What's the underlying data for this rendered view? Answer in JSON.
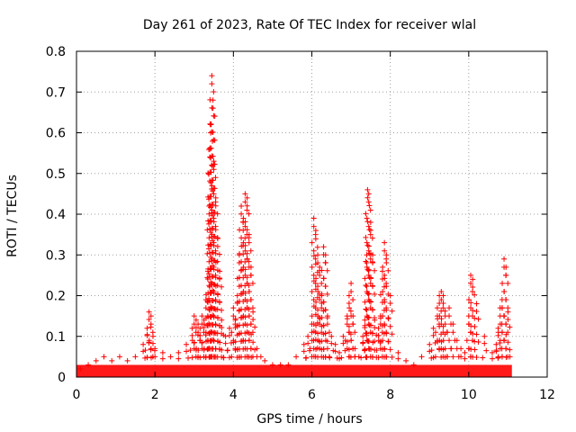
{
  "chart_data": {
    "type": "scatter",
    "title": "Day 261 of 2023, Rate Of TEC Index for receiver wlal",
    "xlabel": "GPS time / hours",
    "ylabel": "ROTI / TECUs",
    "xlim": [
      0,
      12
    ],
    "ylim": [
      0,
      0.8
    ],
    "xticks": [
      0,
      2,
      4,
      6,
      8,
      10,
      12
    ],
    "xtick_labels": [
      "0",
      "2",
      "4",
      "6",
      "8",
      "10",
      "12"
    ],
    "yticks": [
      0,
      0.1,
      0.2,
      0.3,
      0.4,
      0.5,
      0.6,
      0.7,
      0.8
    ],
    "ytick_labels": [
      "0",
      "0.1",
      "0.2",
      "0.3",
      "0.4",
      "0.5",
      "0.6",
      "0.7",
      "0.8"
    ],
    "grid": true,
    "marker": "plus",
    "color": "#ff0000",
    "background_band": {
      "x_range": [
        0,
        11.1
      ],
      "y_range": [
        0,
        0.03
      ],
      "note": "dense low-value points"
    },
    "series": [
      {
        "name": "ROTI",
        "x": [
          0.1,
          0.3,
          0.5,
          0.7,
          0.9,
          1.1,
          1.3,
          1.5,
          1.7,
          1.8,
          1.85,
          1.9,
          1.95,
          2.0,
          2.2,
          2.4,
          2.6,
          2.8,
          2.95,
          3.0,
          3.05,
          3.1,
          3.15,
          3.2,
          3.25,
          3.3,
          3.35,
          3.38,
          3.4,
          3.42,
          3.45,
          3.48,
          3.5,
          3.55,
          3.6,
          3.65,
          3.7,
          3.8,
          3.9,
          4.0,
          4.05,
          4.1,
          4.15,
          4.2,
          4.25,
          4.3,
          4.35,
          4.4,
          4.45,
          4.5,
          4.6,
          4.7,
          4.8,
          5.0,
          5.2,
          5.4,
          5.6,
          5.8,
          5.9,
          6.0,
          6.05,
          6.1,
          6.15,
          6.2,
          6.25,
          6.3,
          6.35,
          6.4,
          6.5,
          6.6,
          6.7,
          6.8,
          6.9,
          6.95,
          7.0,
          7.05,
          7.1,
          7.2,
          7.3,
          7.35,
          7.4,
          7.42,
          7.45,
          7.5,
          7.55,
          7.6,
          7.7,
          7.75,
          7.8,
          7.85,
          7.9,
          8.0,
          8.2,
          8.4,
          8.6,
          8.8,
          9.0,
          9.1,
          9.2,
          9.25,
          9.3,
          9.35,
          9.4,
          9.5,
          9.6,
          9.7,
          9.8,
          9.9,
          10.0,
          10.05,
          10.1,
          10.2,
          10.4,
          10.6,
          10.7,
          10.75,
          10.8,
          10.85,
          10.9,
          10.95,
          11.0,
          11.05
        ],
        "y": [
          0.02,
          0.03,
          0.04,
          0.05,
          0.04,
          0.05,
          0.04,
          0.05,
          0.08,
          0.12,
          0.16,
          0.15,
          0.1,
          0.07,
          0.06,
          0.05,
          0.06,
          0.08,
          0.12,
          0.15,
          0.14,
          0.13,
          0.12,
          0.15,
          0.14,
          0.19,
          0.26,
          0.42,
          0.56,
          0.62,
          0.74,
          0.68,
          0.53,
          0.44,
          0.34,
          0.26,
          0.14,
          0.1,
          0.12,
          0.17,
          0.14,
          0.2,
          0.3,
          0.42,
          0.38,
          0.45,
          0.44,
          0.35,
          0.27,
          0.16,
          0.07,
          0.05,
          0.04,
          0.03,
          0.03,
          0.03,
          0.05,
          0.08,
          0.1,
          0.13,
          0.39,
          0.36,
          0.3,
          0.27,
          0.2,
          0.32,
          0.3,
          0.15,
          0.1,
          0.08,
          0.06,
          0.1,
          0.15,
          0.2,
          0.23,
          0.15,
          0.07,
          0.05,
          0.1,
          0.14,
          0.3,
          0.46,
          0.45,
          0.38,
          0.3,
          0.14,
          0.12,
          0.15,
          0.26,
          0.33,
          0.3,
          0.2,
          0.06,
          0.04,
          0.03,
          0.05,
          0.08,
          0.12,
          0.17,
          0.2,
          0.21,
          0.2,
          0.15,
          0.17,
          0.13,
          0.09,
          0.07,
          0.06,
          0.15,
          0.25,
          0.24,
          0.18,
          0.1,
          0.06,
          0.08,
          0.12,
          0.17,
          0.19,
          0.29,
          0.27,
          0.16,
          0.05
        ]
      }
    ]
  }
}
